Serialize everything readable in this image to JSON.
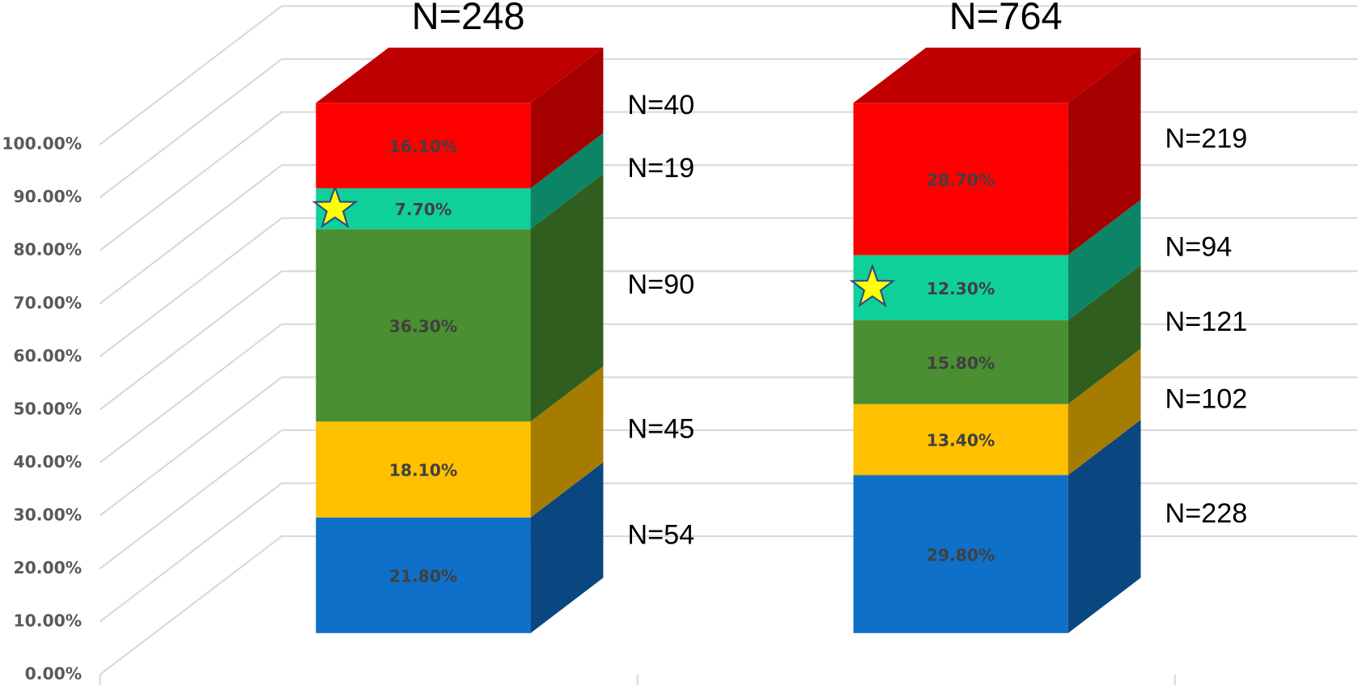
{
  "chart_data": {
    "type": "bar3d_stacked",
    "categories": [
      null,
      null
    ],
    "totals": [
      "N=248",
      "N=764"
    ],
    "ylim": [
      0,
      100
    ],
    "yticks": [
      {
        "value": 0,
        "label": "0.00%"
      },
      {
        "value": 10,
        "label": "10.00%"
      },
      {
        "value": 20,
        "label": "20.00%"
      },
      {
        "value": 30,
        "label": "30.00%"
      },
      {
        "value": 40,
        "label": "40.00%"
      },
      {
        "value": 50,
        "label": "50.00%"
      },
      {
        "value": 60,
        "label": "60.00%"
      },
      {
        "value": 70,
        "label": "70.00%"
      },
      {
        "value": 80,
        "label": "80.00%"
      },
      {
        "value": 90,
        "label": "90.00%"
      },
      {
        "value": 100,
        "label": "100.00%"
      }
    ],
    "grid": true,
    "series": [
      {
        "color": "#0e70c8",
        "side_color": "#0a4780",
        "values": [
          21.8,
          29.8
        ],
        "value_labels": [
          "21.80%",
          "29.80%"
        ],
        "n_labels": [
          "N=54",
          "N=228"
        ]
      },
      {
        "color": "#ffc000",
        "side_color": "#a67c00",
        "values": [
          18.1,
          13.4
        ],
        "value_labels": [
          "18.10%",
          "13.40%"
        ],
        "n_labels": [
          "N=45",
          "N=102"
        ]
      },
      {
        "color": "#4a8f31",
        "side_color": "#2f5e1f",
        "values": [
          36.3,
          15.8
        ],
        "value_labels": [
          "36.30%",
          "15.80%"
        ],
        "n_labels": [
          "N=90",
          "N=121"
        ]
      },
      {
        "color": "#10d09a",
        "side_color": "#0b8566",
        "values": [
          7.7,
          12.3
        ],
        "value_labels": [
          "7.70%",
          "12.30%"
        ],
        "n_labels": [
          "N=19",
          "N=94"
        ]
      },
      {
        "color": "#ff0000",
        "side_color": "#a50000",
        "top_color": "#c00000",
        "values": [
          16.1,
          28.7
        ],
        "value_labels": [
          "16.10%",
          "28.70%"
        ],
        "n_labels": [
          "N=40",
          "N=219"
        ]
      }
    ]
  }
}
